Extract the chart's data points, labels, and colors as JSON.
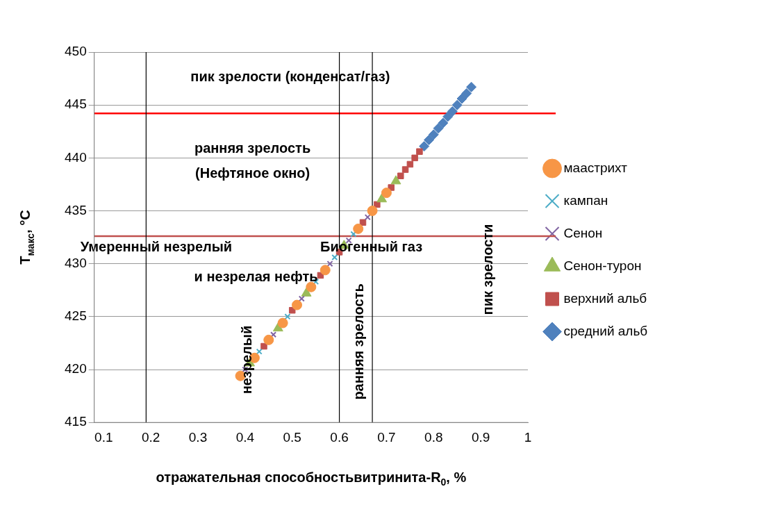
{
  "chart_data": {
    "type": "scatter",
    "xlabel": "отражательная способностьвитринита-R$_{0}$, %",
    "ylabel": "T$_{макс}$, °C",
    "xlim": [
      0.08,
      1
    ],
    "xticks": [
      0.1,
      0.2,
      0.3,
      0.4,
      0.5,
      0.6,
      0.7,
      0.8,
      0.9,
      1
    ],
    "ylim": [
      415,
      450
    ],
    "yticks": [
      415,
      420,
      425,
      430,
      435,
      440,
      445,
      450
    ],
    "grid": "y",
    "legend": "right",
    "series": [
      {
        "name": "средний альб",
        "color": "#4f81bd",
        "marker": "diamond",
        "x": [
          0.78,
          0.79,
          0.8,
          0.81,
          0.82,
          0.83,
          0.84,
          0.85,
          0.86,
          0.87,
          0.88
        ],
        "values": [
          441.1,
          441.7,
          442.2,
          442.8,
          443.3,
          443.9,
          444.4,
          445.0,
          445.6,
          446.1,
          446.7
        ]
      },
      {
        "name": "верхний альб",
        "color": "#c0504d",
        "marker": "square",
        "x": [
          0.44,
          0.5,
          0.56,
          0.6,
          0.65,
          0.68,
          0.71,
          0.73,
          0.74,
          0.75,
          0.76,
          0.77
        ],
        "values": [
          422.2,
          425.6,
          428.9,
          431.1,
          433.9,
          435.6,
          437.2,
          438.3,
          438.9,
          439.4,
          440.0,
          440.6
        ]
      },
      {
        "name": "Сенон-турон",
        "color": "#9bbb59",
        "marker": "triangle",
        "x": [
          0.41,
          0.47,
          0.53,
          0.61,
          0.69,
          0.72
        ],
        "values": [
          420.6,
          423.9,
          427.2,
          431.7,
          436.1,
          437.8
        ]
      },
      {
        "name": "Сенон",
        "color": "#8064a2",
        "marker": "cross",
        "x": [
          0.4,
          0.46,
          0.52,
          0.58,
          0.62,
          0.66
        ],
        "values": [
          420.0,
          423.3,
          426.7,
          430.0,
          432.2,
          434.4
        ]
      },
      {
        "name": "кампан",
        "color": "#4bacc6",
        "marker": "cross",
        "x": [
          0.43,
          0.49,
          0.55,
          0.59,
          0.63
        ],
        "values": [
          421.7,
          425.0,
          428.3,
          430.6,
          432.8
        ]
      },
      {
        "name": "маастрихт",
        "color": "#f79646",
        "marker": "circle",
        "x": [
          0.39,
          0.42,
          0.45,
          0.48,
          0.51,
          0.54,
          0.57,
          0.64,
          0.67,
          0.7
        ],
        "values": [
          419.4,
          421.1,
          422.8,
          424.4,
          426.1,
          427.8,
          429.4,
          433.3,
          435.0,
          436.7
        ]
      }
    ],
    "ref_lines": [
      {
        "axis": "y",
        "value": 444.2,
        "color": "#ff0000"
      },
      {
        "axis": "y",
        "value": 432.6,
        "color": "#c0504d"
      },
      {
        "axis": "x",
        "value": 0.19,
        "color": "#000000"
      },
      {
        "axis": "x",
        "value": 0.6,
        "color": "#000000"
      },
      {
        "axis": "x",
        "value": 0.67,
        "color": "#000000"
      }
    ],
    "annotations": [
      "пик зрелости (конденсат/газ)",
      "ранняя зрелость\n(Нефтяное окно)",
      "Умеренный незрелый",
      "и незрелая нефть",
      "Биогенный газ",
      "незрелый",
      "ранняя зрелость",
      "пик зрелости"
    ]
  }
}
